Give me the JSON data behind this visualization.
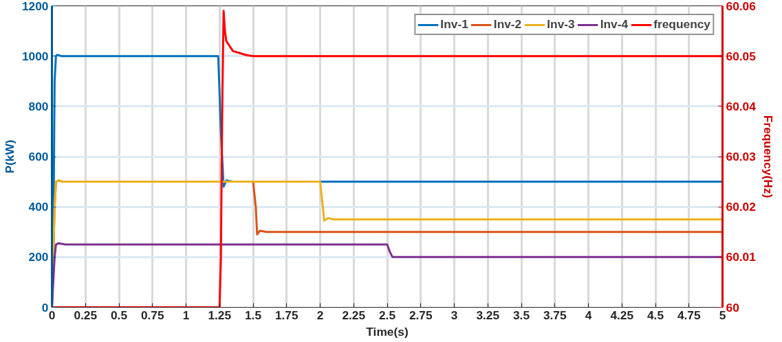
{
  "chart_data": {
    "type": "line",
    "xlabel": "Time(s)",
    "ylabel": "P(kW)",
    "y2label": "Frequency(Hz)",
    "xlim": [
      0,
      5
    ],
    "xticks": [
      0,
      0.25,
      0.5,
      0.75,
      1,
      1.25,
      1.5,
      1.75,
      2,
      2.25,
      2.5,
      2.75,
      3,
      3.25,
      3.5,
      3.75,
      4,
      4.25,
      4.5,
      4.75,
      5
    ],
    "ylim": [
      0,
      1200
    ],
    "yticks": [
      0,
      200,
      400,
      600,
      800,
      1000,
      1200
    ],
    "y2lim": [
      60,
      60.06
    ],
    "y2ticks": [
      60,
      60.01,
      60.02,
      60.03,
      60.04,
      60.05,
      60.06
    ],
    "grid": true,
    "legend": "top right",
    "line_style": "solid",
    "marker": "none",
    "series": [
      {
        "name": "Inv-1",
        "color": "#0072bd",
        "x": [
          0,
          0.01,
          0.02,
          0.03,
          0.04,
          0.07,
          1.24,
          1.26,
          1.27,
          1.28,
          1.3,
          1.35,
          5
        ],
        "values": [
          0,
          200,
          900,
          1000,
          1005,
          1000,
          1000,
          700,
          590,
          480,
          505,
          500,
          500
        ]
      },
      {
        "name": "Inv-2",
        "color": "#d95319",
        "x": [
          0,
          0.02,
          0.03,
          0.05,
          0.08,
          1.5,
          1.52,
          1.53,
          1.55,
          1.6,
          5
        ],
        "values": [
          0,
          400,
          500,
          505,
          500,
          500,
          400,
          290,
          305,
          300,
          300
        ]
      },
      {
        "name": "Inv-3",
        "color": "#edb120",
        "x": [
          0,
          0.02,
          0.03,
          0.05,
          0.08,
          2.0,
          2.02,
          2.03,
          2.06,
          2.1,
          5
        ],
        "values": [
          0,
          400,
          500,
          505,
          500,
          500,
          400,
          345,
          355,
          350,
          350
        ]
      },
      {
        "name": "Inv-4",
        "color": "#7e2f8e",
        "x": [
          0,
          0.02,
          0.03,
          0.05,
          0.1,
          2.5,
          2.52,
          2.54,
          2.6,
          5
        ],
        "values": [
          0,
          200,
          250,
          255,
          250,
          250,
          220,
          200,
          200,
          200
        ]
      },
      {
        "name": "frequency",
        "color": "#ff0000",
        "axis": "y2",
        "x": [
          0,
          1.25,
          1.26,
          1.27,
          1.28,
          1.29,
          1.3,
          1.35,
          1.45,
          1.5,
          5
        ],
        "values": [
          60,
          60,
          60.01,
          60.04,
          60.059,
          60.055,
          60.053,
          60.051,
          60.0502,
          60.05,
          60.05
        ]
      }
    ]
  }
}
